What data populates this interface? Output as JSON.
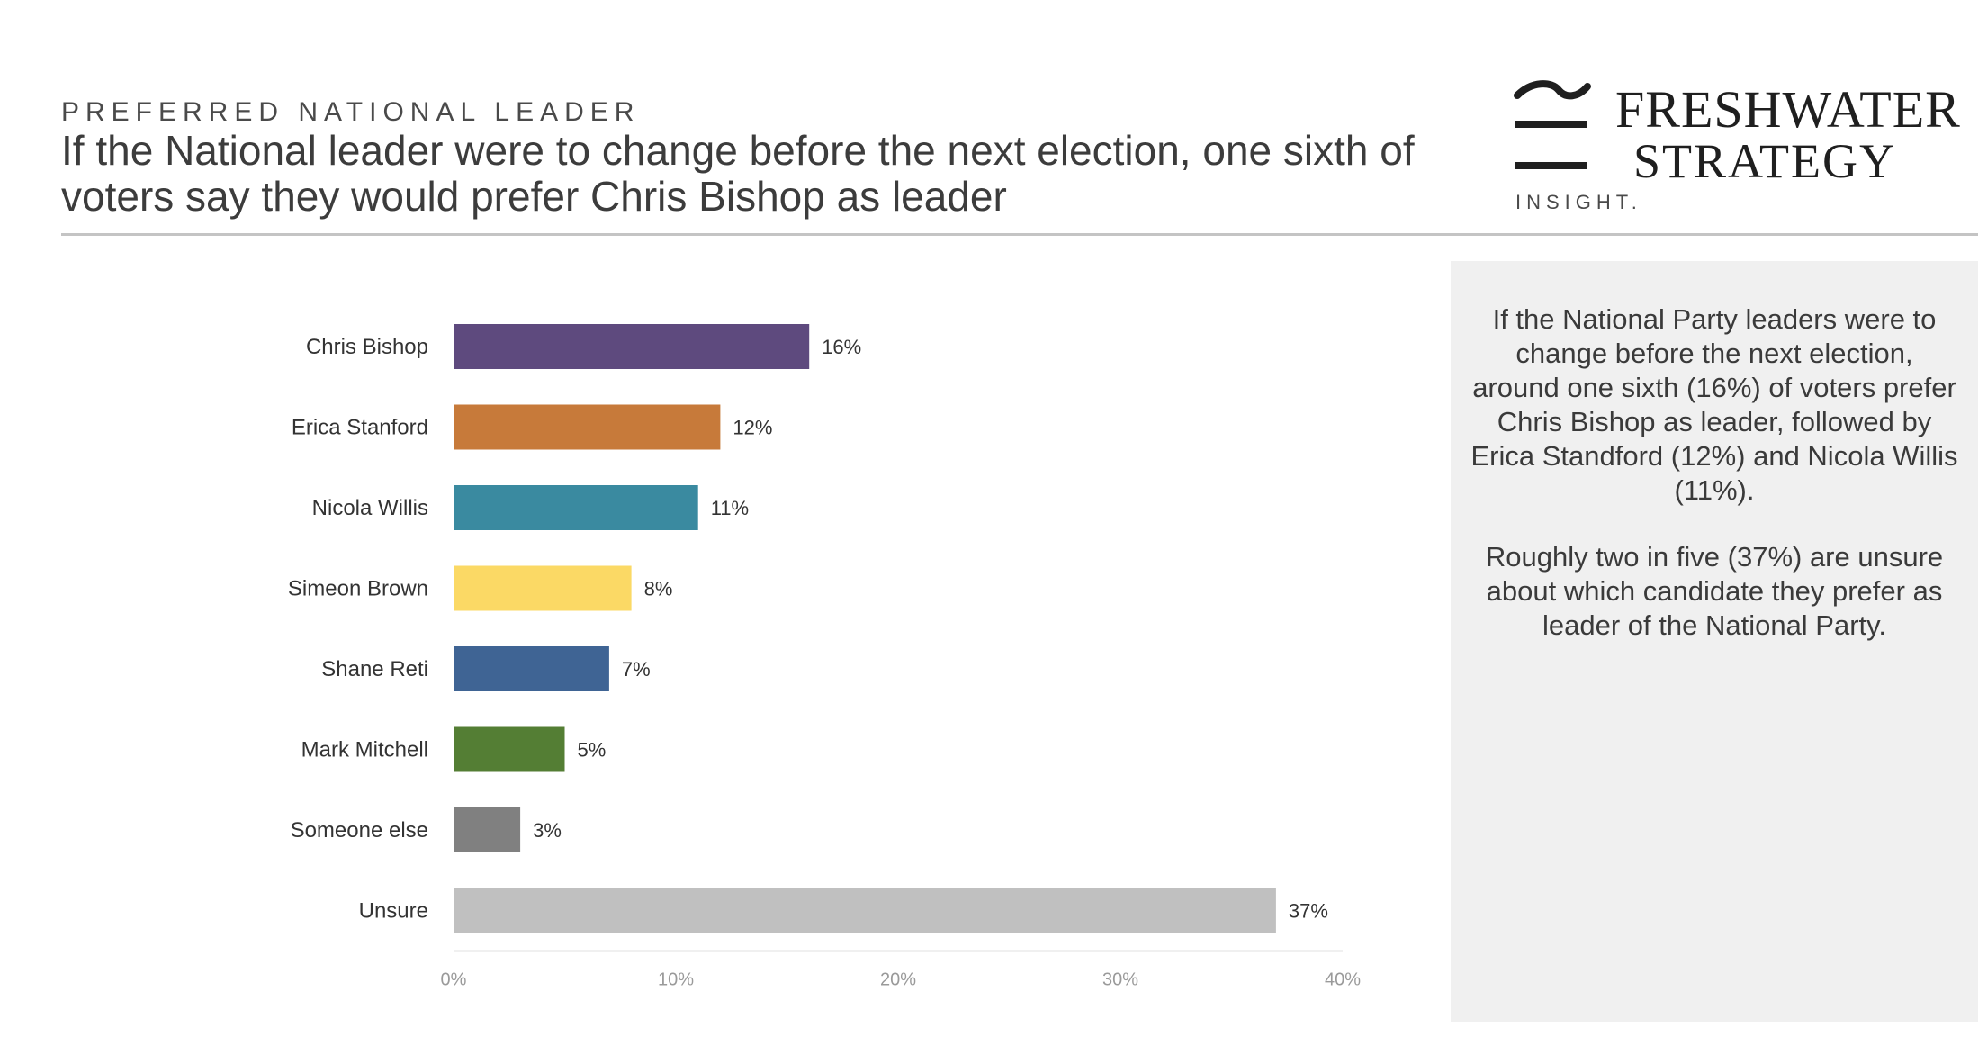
{
  "header": {
    "kicker": "PREFERRED NATIONAL LEADER",
    "headline": "If the National leader were to change before the next election, one sixth of voters say they would prefer Chris Bishop as leader"
  },
  "logo": {
    "line1": "FRESHWATER",
    "line2": "STRATEGY",
    "tagline": "INSIGHT."
  },
  "side_panel": {
    "paragraph1": "If the National Party leaders were to change before the next election, around one sixth (16%) of voters prefer Chris Bishop as leader, followed by Erica Standford (12%) and Nicola Willis (11%).",
    "paragraph2": "Roughly two in five (37%) are unsure about which candidate they prefer as leader of the National Party."
  },
  "chart_data": {
    "type": "bar",
    "orientation": "horizontal",
    "categories": [
      "Chris Bishop",
      "Erica Stanford",
      "Nicola Willis",
      "Simeon Brown",
      "Shane Reti",
      "Mark Mitchell",
      "Someone else",
      "Unsure"
    ],
    "values": [
      16,
      12,
      11,
      8,
      7,
      5,
      3,
      37
    ],
    "value_labels": [
      "16%",
      "12%",
      "11%",
      "8%",
      "7%",
      "5%",
      "3%",
      "37%"
    ],
    "colors": [
      "#5e4a7e",
      "#c77a3a",
      "#3a8aa0",
      "#fbd965",
      "#3f6494",
      "#547e34",
      "#808080",
      "#c0c0c0"
    ],
    "xlim": [
      0,
      40
    ],
    "xticks": [
      0,
      10,
      20,
      30,
      40
    ],
    "xtick_labels": [
      "0%",
      "10%",
      "20%",
      "30%",
      "40%"
    ],
    "grid": false
  }
}
